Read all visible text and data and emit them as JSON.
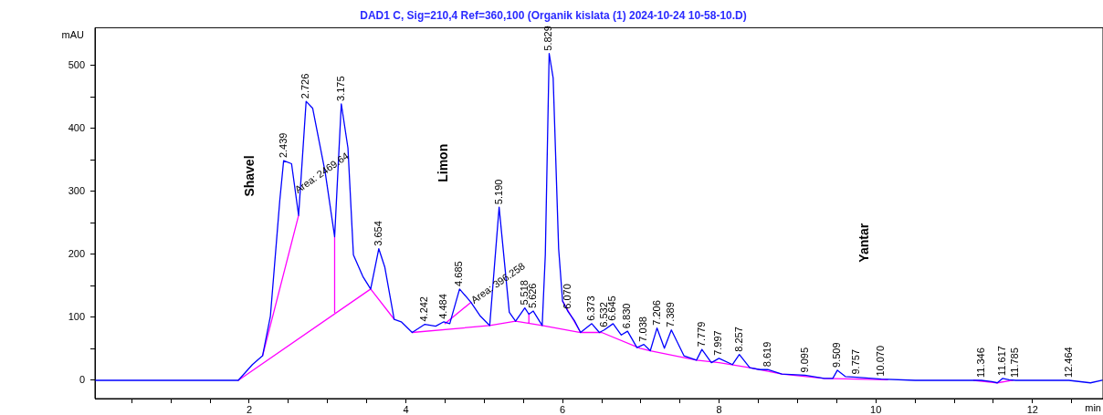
{
  "chart_data": {
    "type": "line",
    "title": "DAD1 C, Sig=210,4 Ref=360,100 (Organik kislata (1) 2024-10-24 10-58-10.D)",
    "xlabel": "min",
    "ylabel": "mAU",
    "xlim": [
      0.03,
      12.9
    ],
    "ylim": [
      -29,
      560
    ],
    "xticks": [
      {
        "value": 0.5,
        "label": null
      },
      {
        "value": 1,
        "label": null
      },
      {
        "value": 1.5,
        "label": null
      },
      2,
      {
        "value": 2.5,
        "label": null
      },
      {
        "value": 3,
        "label": null
      },
      {
        "value": 3.5,
        "label": null
      },
      4,
      {
        "value": 4.5,
        "label": null
      },
      {
        "value": 5,
        "label": null
      },
      {
        "value": 5.5,
        "label": null
      },
      6,
      {
        "value": 6.5,
        "label": null
      },
      {
        "value": 7,
        "label": null
      },
      {
        "value": 7.5,
        "label": null
      },
      8,
      {
        "value": 8.5,
        "label": null
      },
      {
        "value": 9,
        "label": null
      },
      {
        "value": 9.5,
        "label": null
      },
      10,
      {
        "value": 10.5,
        "label": null
      },
      {
        "value": 11,
        "label": null
      },
      {
        "value": 11.5,
        "label": null
      },
      12,
      {
        "value": 12.5,
        "label": null
      }
    ],
    "yticks": [
      0,
      {
        "value": 50,
        "label": null
      },
      100,
      {
        "value": 150,
        "label": null
      },
      200,
      {
        "value": 250,
        "label": null
      },
      300,
      {
        "value": 350,
        "label": null
      },
      400,
      {
        "value": 450,
        "label": null
      },
      500
    ],
    "grid": false,
    "legend": false,
    "marker": "none",
    "line_style": "solid",
    "series": [
      {
        "color": "#0000ff",
        "x": [
          0.03,
          1.86,
          2.04,
          2.17,
          2.27,
          2.39,
          2.439,
          2.54,
          2.63,
          2.726,
          2.81,
          2.97,
          3.09,
          3.175,
          3.26,
          3.33,
          3.45,
          3.55,
          3.654,
          3.73,
          3.85,
          3.94,
          4.08,
          4.242,
          4.38,
          4.484,
          4.56,
          4.685,
          4.83,
          4.95,
          5.07,
          5.19,
          5.32,
          5.4,
          5.518,
          5.57,
          5.626,
          5.74,
          5.78,
          5.829,
          5.88,
          5.95,
          6,
          6.07,
          6.15,
          6.23,
          6.373,
          6.47,
          6.532,
          6.645,
          6.75,
          6.83,
          6.95,
          7.038,
          7.12,
          7.206,
          7.3,
          7.389,
          7.55,
          7.71,
          7.779,
          7.9,
          7.997,
          8.17,
          8.257,
          8.39,
          8.52,
          8.619,
          8.8,
          9.095,
          9.34,
          9.45,
          9.509,
          9.61,
          9.757,
          10.07,
          10.5,
          11.25,
          11.346,
          11.48,
          11.55,
          11.617,
          11.7,
          11.785,
          12.3,
          12.464,
          12.74,
          12.89
        ],
        "values": [
          0,
          0,
          25,
          39,
          102,
          286,
          349,
          344,
          262,
          443,
          432,
          330,
          228,
          439,
          369,
          199,
          165,
          145,
          209,
          180,
          97,
          93,
          76,
          89,
          86,
          93,
          90,
          145,
          124,
          102,
          87,
          275,
          108,
          94,
          115,
          105,
          110,
          87,
          200,
          519,
          480,
          209,
          126,
          109,
          95,
          76,
          90,
          76,
          80,
          90,
          72,
          78,
          52,
          57,
          47,
          83,
          51,
          80,
          39,
          32,
          49,
          28,
          35,
          25,
          41,
          20,
          17,
          17,
          10,
          8,
          3,
          3,
          16,
          6,
          5,
          2,
          0,
          0,
          0,
          -2,
          -4,
          3,
          1,
          0,
          0,
          0,
          -4,
          0
        ]
      },
      {
        "color": "#ff00ff",
        "x": [
          1.86,
          3.55,
          3.85,
          null,
          2.17,
          2.63,
          null,
          3.09,
          3.09,
          null,
          4.08,
          5.07,
          5.4,
          5.74,
          6.23,
          6.5,
          6.99,
          7.12,
          7.71,
          8,
          8.39,
          8.8,
          9.34,
          10.15,
          null,
          4.5,
          4.83,
          null,
          5.57,
          5.57,
          null,
          6,
          6.23,
          null,
          11.25,
          11.55,
          11.75
        ],
        "values": [
          0,
          145,
          97,
          null,
          39,
          262,
          null,
          228,
          108,
          null,
          76,
          87,
          94,
          87,
          76,
          76,
          51,
          47,
          32,
          28,
          20,
          10,
          3,
          1,
          null,
          90,
          124,
          null,
          105,
          91,
          null,
          126,
          76,
          null,
          0,
          -4,
          0
        ]
      }
    ],
    "annotations": [
      "Shavel",
      "Limon",
      "Yantar",
      {
        "text": "Area: 2469.64",
        "x": 2.6,
        "y": 300
      },
      {
        "text": "Area: 396.258",
        "x": 4.85,
        "y": 125
      },
      {
        "text": "2.439",
        "x": 2.439,
        "y": 349
      },
      {
        "text": "2.726",
        "x": 2.726,
        "y": 443
      },
      {
        "text": "3.175",
        "x": 3.175,
        "y": 439
      },
      {
        "text": "3.654",
        "x": 3.654,
        "y": 209
      },
      {
        "text": "4.242",
        "x": 4.242,
        "y": 89
      },
      {
        "text": "4.484",
        "x": 4.484,
        "y": 93
      },
      {
        "text": "4.685",
        "x": 4.685,
        "y": 145
      },
      {
        "text": "5.190",
        "x": 5.19,
        "y": 275
      },
      {
        "text": "5.518",
        "x": 5.518,
        "y": 115
      },
      {
        "text": "5.626",
        "x": 5.626,
        "y": 110
      },
      {
        "text": "5.829",
        "x": 5.829,
        "y": 519
      },
      {
        "text": "6.070",
        "x": 6.07,
        "y": 109
      },
      {
        "text": "6.373",
        "x": 6.373,
        "y": 90
      },
      {
        "text": "6.532",
        "x": 6.532,
        "y": 80
      },
      {
        "text": "6.645",
        "x": 6.645,
        "y": 90
      },
      {
        "text": "6.830",
        "x": 6.83,
        "y": 78
      },
      {
        "text": "7.038",
        "x": 7.038,
        "y": 57
      },
      {
        "text": "7.206",
        "x": 7.206,
        "y": 83
      },
      {
        "text": "7.389",
        "x": 7.389,
        "y": 80
      },
      {
        "text": "7.779",
        "x": 7.779,
        "y": 49
      },
      {
        "text": "7.997",
        "x": 7.997,
        "y": 35
      },
      {
        "text": "8.257",
        "x": 8.257,
        "y": 41
      },
      {
        "text": "8.619",
        "x": 8.619,
        "y": 17
      },
      {
        "text": "9.095",
        "x": 9.095,
        "y": 8
      },
      {
        "text": "9.509",
        "x": 9.509,
        "y": 16
      },
      {
        "text": "9.757",
        "x": 9.757,
        "y": 5
      },
      {
        "text": "10.070",
        "x": 10.07,
        "y": 2
      },
      {
        "text": "11.346",
        "x": 11.346,
        "y": 0
      },
      {
        "text": "11.617",
        "x": 11.617,
        "y": 3
      },
      {
        "text": "11.785",
        "x": 11.785,
        "y": 0
      },
      {
        "text": "12.464",
        "x": 12.464,
        "y": 0
      }
    ]
  }
}
